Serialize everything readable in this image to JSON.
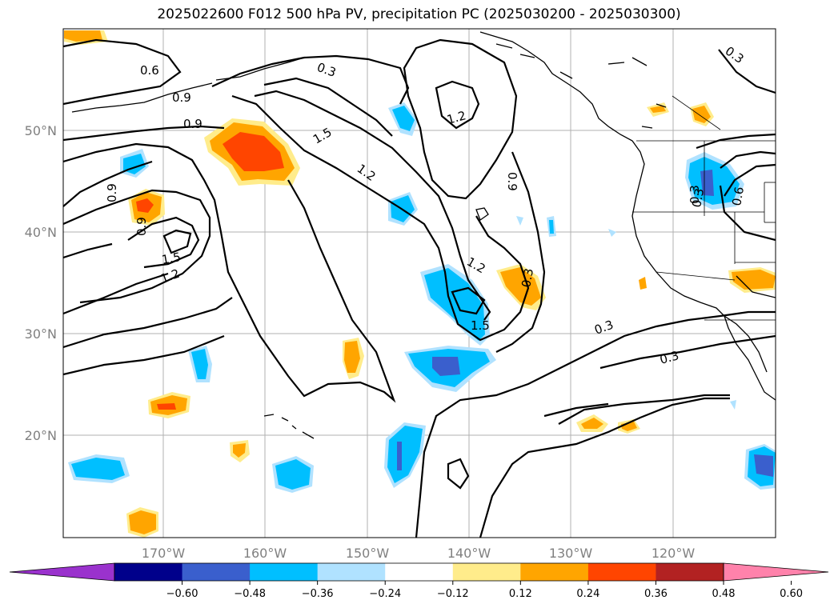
{
  "title": "2025022600 F012 500 hPa PV, precipitation PC (2025030200 - 2025030300)",
  "lat_labels": [
    {
      "text": "50°N",
      "lat": 50
    },
    {
      "text": "40°N",
      "lat": 40
    },
    {
      "text": "30°N",
      "lat": 30
    },
    {
      "text": "20°N",
      "lat": 20
    }
  ],
  "lon_labels": [
    {
      "text": "170°W",
      "lon": -170
    },
    {
      "text": "160°W",
      "lon": -160
    },
    {
      "text": "150°W",
      "lon": -150
    },
    {
      "text": "140°W",
      "lon": -140
    },
    {
      "text": "130°W",
      "lon": -130
    },
    {
      "text": "120°W",
      "lon": -120
    }
  ],
  "contour_labels": [
    "0.6",
    "0.3",
    "0.3",
    "0.9",
    "0.9",
    "1.5",
    "1.2",
    "1.2",
    "0.9",
    "0.3",
    "0.9",
    "0.9",
    "1.5",
    "1.2",
    "1.2",
    "0.3",
    "1.5",
    "0.3",
    "0.3",
    "0.3",
    "0.6"
  ],
  "colorbar": {
    "ticks": [
      "−0.60",
      "−0.48",
      "−0.36",
      "−0.24",
      "−0.12",
      "0.12",
      "0.24",
      "0.36",
      "0.48",
      "0.60"
    ],
    "colors": {
      "under": "#9a32cd",
      "bins": [
        "#00008b",
        "#3a5fcd",
        "#00bfff",
        "#b0e2ff",
        "#ffffff",
        "#ffec8b",
        "#ffa500",
        "#ff4500",
        "#b22222"
      ],
      "over": "#ff82ab"
    }
  },
  "colors": {
    "positive_light": "#ffec8b",
    "positive_mid": "#ffa500",
    "positive_strong": "#ff4500",
    "negative_light": "#b0e2ff",
    "negative_mid": "#00bfff",
    "negative_strong": "#3a5fcd",
    "gridline": "#b0b0b0"
  }
}
